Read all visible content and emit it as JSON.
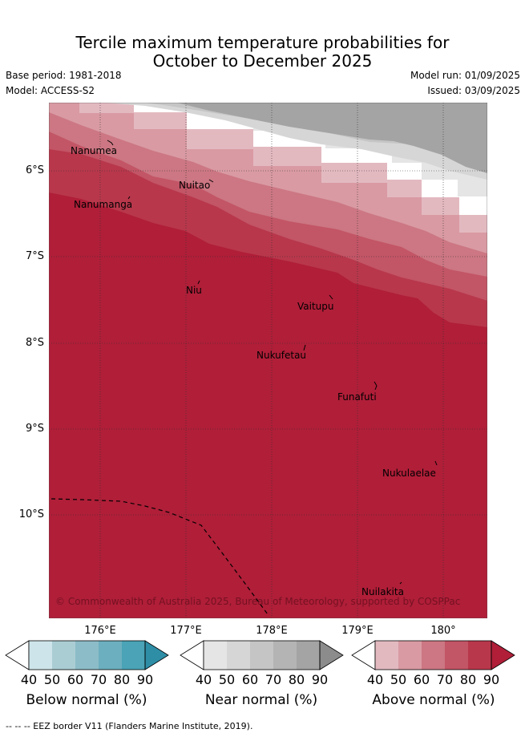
{
  "title": {
    "line1": "Tercile maximum temperature probabilities for",
    "line2": "October to December 2025"
  },
  "meta": {
    "base_period": "Base period: 1981-2018",
    "model": "Model: ACCESS-S2",
    "model_run": "Model run: 01/09/2025",
    "issued": "Issued: 03/09/2025"
  },
  "map": {
    "lat_labels": [
      "6°S",
      "7°S",
      "8°S",
      "9°S",
      "10°S"
    ],
    "lon_labels": [
      "176°E",
      "177°E",
      "178°E",
      "179°E",
      "180°"
    ],
    "places": {
      "nanumea": "Nanumea",
      "nanumanga": "Nanumanga",
      "nuitao": "Nuitao",
      "niu": "Niu",
      "vaitupu": "Vaitupu",
      "nukufetau": "Nukufetau",
      "funafuti": "Funafuti",
      "nukulaelae": "Nukulaelae",
      "nuilakita": "Nuilakita"
    },
    "copyright": "© Commonwealth of Australia 2025, Bureau of Meteorology, supported by COSPPac"
  },
  "colorbars": {
    "ticks": [
      "40",
      "50",
      "60",
      "70",
      "80",
      "90"
    ],
    "below": {
      "label": "Below normal (%)",
      "colors": [
        "#ffffff",
        "#cde5ea",
        "#aacdd3",
        "#8cbcc7",
        "#6cafbf",
        "#4aa3b6",
        "#2e8ea6"
      ]
    },
    "near": {
      "label": "Near normal (%)",
      "colors": [
        "#ffffff",
        "#e5e5e5",
        "#d6d6d6",
        "#c5c5c5",
        "#b4b4b4",
        "#a4a4a4",
        "#8c8c8c"
      ]
    },
    "above": {
      "label": "Above normal (%)",
      "colors": [
        "#ffffff",
        "#e3b9c0",
        "#d99aa3",
        "#cc7783",
        "#c25566",
        "#b8374b",
        "#b01e38"
      ]
    }
  },
  "footer": "-- -- -- EEZ border V11 (Flanders Marine Institute, 2019)."
}
